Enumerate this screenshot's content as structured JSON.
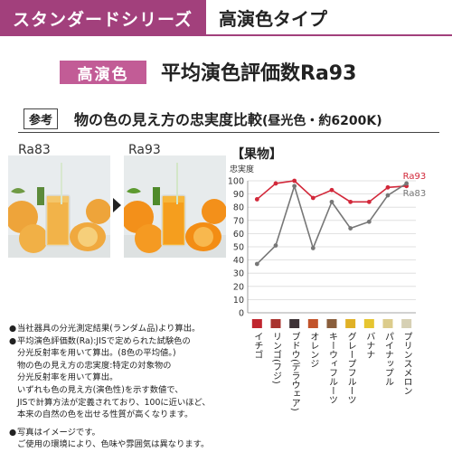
{
  "header": {
    "series_label": "スタンダードシリーズ",
    "type_label": "高演色タイプ"
  },
  "badge": {
    "label": "高演色"
  },
  "headline": "平均演色評価数Ra93",
  "reference": {
    "tag": "参考",
    "text": "物の色の見え方の忠実度比較",
    "paren": "(昼光色・約6200K)"
  },
  "photos": {
    "left_label": "Ra83",
    "right_label": "Ra93"
  },
  "colors": {
    "brand": "#a2407c",
    "badge": "#c25c96",
    "ra93_line": "#d2283a",
    "ra83_line": "#777777"
  },
  "chart_data": {
    "type": "line",
    "title": "【果物】",
    "ylabel": "忠実度",
    "ylim": [
      0,
      100
    ],
    "yticks": [
      0,
      10,
      20,
      30,
      40,
      50,
      60,
      70,
      80,
      90,
      100
    ],
    "grid": true,
    "categories": [
      "イチゴ",
      "リンゴ(フジ)",
      "ブドウ(デラウェア)",
      "オレンジ",
      "キーウィフルーツ",
      "グレープフルーツ",
      "バナナ",
      "パイナップル",
      "プリンスメロン"
    ],
    "swatches": [
      "#c0252e",
      "#a8332e",
      "#3d3236",
      "#c2532a",
      "#8a5e3c",
      "#e0b126",
      "#e6c530",
      "#dccc8c",
      "#d6d0b4"
    ],
    "series": [
      {
        "name": "Ra93",
        "color": "#d2283a",
        "values": [
          86,
          98,
          100,
          87,
          93,
          84,
          84,
          95,
          96
        ]
      },
      {
        "name": "Ra83",
        "color": "#777777",
        "values": [
          37,
          51,
          96,
          49,
          84,
          64,
          69,
          89,
          98
        ]
      }
    ]
  },
  "notes": [
    {
      "bullet": "●",
      "lines": [
        "当社器具の分光測定結果(ランダム品)より算出。"
      ]
    },
    {
      "bullet": "●",
      "lines": [
        "平均演色評価数(Ra):JISで定められた試験色の",
        "分光反射率を用いて算出。(8色の平均値。)",
        "物の色の見え方の忠実度:特定の対象物の",
        "分光反射率を用いて算出。",
        "いずれも色の見え方(演色性)を示す数値で、",
        "JISで計算方法が定義されており、100に近いほど、",
        "本来の自然の色を出せる性質が高くなります。"
      ]
    },
    {
      "bullet": "●",
      "lines": [
        "写真はイメージです。",
        "ご使用の環境により、色味や雰囲気は異なります。"
      ]
    }
  ]
}
